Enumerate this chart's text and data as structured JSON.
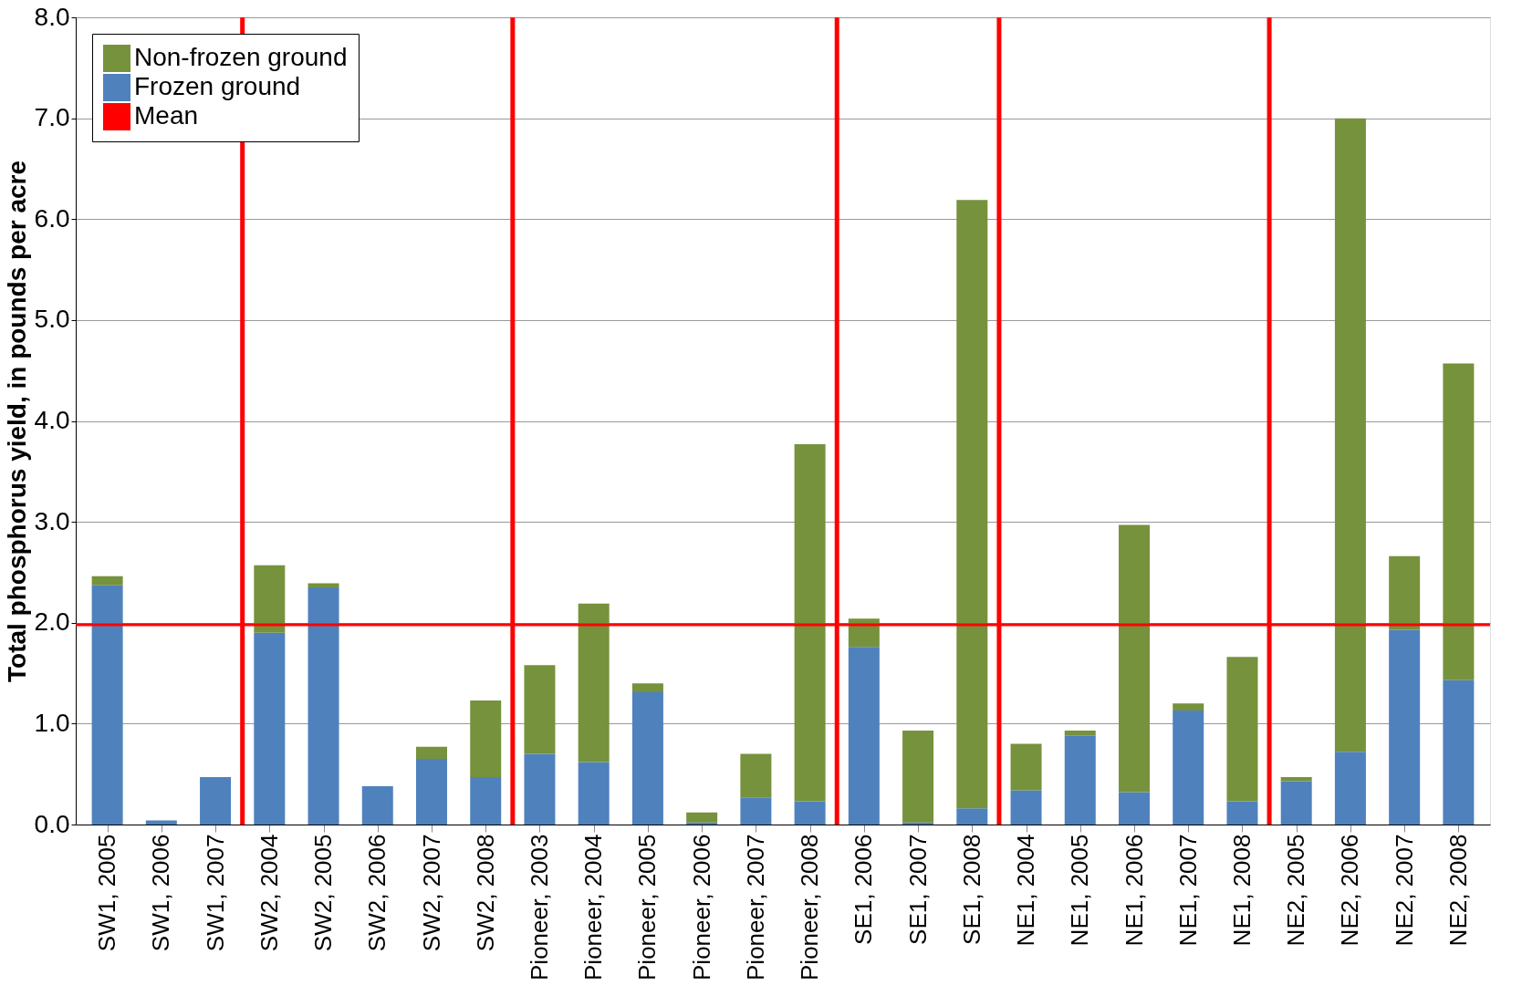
{
  "chart_data": {
    "type": "bar",
    "ylabel": "Total phosphorus yield, in pounds per acre",
    "stacked": true,
    "categories": [
      "SW1, 2005",
      "SW1, 2006",
      "SW1, 2007",
      "SW2, 2004",
      "SW2, 2005",
      "SW2, 2006",
      "SW2, 2007",
      "SW2, 2008",
      "Pioneer, 2003",
      "Pioneer, 2004",
      "Pioneer, 2005",
      "Pioneer, 2006",
      "Pioneer, 2007",
      "Pioneer, 2008",
      "SE1, 2006",
      "SE1, 2007",
      "SE1, 2008",
      "NE1, 2004",
      "NE1, 2005",
      "NE1, 2006",
      "NE1, 2007",
      "NE1, 2008",
      "NE2, 2005",
      "NE2, 2006",
      "NE2, 2007",
      "NE2, 2008"
    ],
    "series": [
      {
        "name": "Frozen ground",
        "color": "#4f81bd",
        "values": [
          2.37,
          0.04,
          0.47,
          1.9,
          2.35,
          0.38,
          0.65,
          0.47,
          0.7,
          0.62,
          1.31,
          0.02,
          0.27,
          0.23,
          1.76,
          0.02,
          0.16,
          0.34,
          0.88,
          0.32,
          1.13,
          0.23,
          0.43,
          0.72,
          1.93,
          1.43
        ]
      },
      {
        "name": "Non-frozen ground",
        "color": "#76923c",
        "values": [
          0.09,
          0,
          0,
          0.67,
          0.04,
          0,
          0.12,
          0.76,
          0.88,
          1.57,
          0.09,
          0.1,
          0.43,
          3.54,
          0.28,
          0.91,
          6.03,
          0.46,
          0.05,
          2.65,
          0.07,
          1.43,
          0.04,
          6.28,
          0.73,
          3.14
        ]
      }
    ],
    "ref_lines": [
      {
        "axis": "y",
        "value": 1.98,
        "label": "Mean",
        "color": "#ff0000"
      }
    ],
    "ylim": [
      0,
      8
    ],
    "yticks": [
      {
        "value": 0,
        "label": "0.0"
      },
      {
        "value": 1,
        "label": "1.0"
      },
      {
        "value": 2,
        "label": "2.0"
      },
      {
        "value": 3,
        "label": "3.0"
      },
      {
        "value": 4,
        "label": "4.0"
      },
      {
        "value": 5,
        "label": "5.0"
      },
      {
        "value": 6,
        "label": "6.0"
      },
      {
        "value": 7,
        "label": "7.0"
      },
      {
        "value": 8,
        "label": "8.0"
      }
    ],
    "grid": "y",
    "legend": "top left"
  }
}
